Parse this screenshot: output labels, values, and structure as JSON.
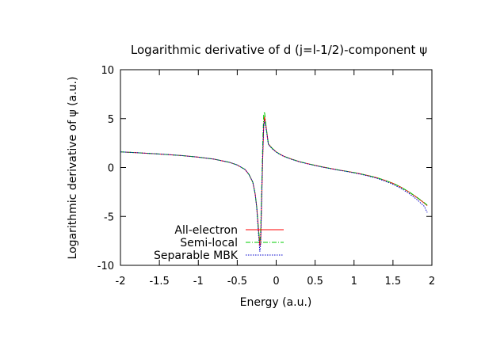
{
  "chart_data": {
    "type": "line",
    "title": "Logarithmic derivative of d (j=l-1/2)-component ψ",
    "xlabel": "Energy (a.u.)",
    "ylabel": "Logarithmic derivative of ψ (a.u.)",
    "xlim": [
      -2,
      2
    ],
    "ylim": [
      -10,
      10
    ],
    "xticks": [
      "-2",
      "-1.5",
      "-1",
      "-0.5",
      "0",
      "0.5",
      "1",
      "1.5",
      "2"
    ],
    "yticks": [
      "-10",
      "-5",
      "0",
      "5",
      "10"
    ],
    "grid": false,
    "legend_position": "bottom-left",
    "series": [
      {
        "name": "All-electron",
        "color": "#ff0000",
        "dash": "solid",
        "x": [
          -2.0,
          -1.8,
          -1.6,
          -1.4,
          -1.2,
          -1.0,
          -0.8,
          -0.6,
          -0.5,
          -0.4,
          -0.35,
          -0.3,
          -0.27,
          -0.25,
          -0.23,
          -0.21,
          -0.2,
          -0.19,
          -0.18,
          -0.17,
          -0.16,
          -0.15,
          -0.13,
          -0.11,
          -0.1,
          -0.05,
          0.0,
          0.05,
          0.1,
          0.2,
          0.3,
          0.4,
          0.5,
          0.6,
          0.7,
          0.8,
          0.9,
          1.0,
          1.1,
          1.2,
          1.3,
          1.4,
          1.5,
          1.6,
          1.7,
          1.8,
          1.9,
          1.94
        ],
        "values": [
          1.6,
          1.52,
          1.43,
          1.33,
          1.21,
          1.06,
          0.86,
          0.53,
          0.26,
          -0.2,
          -0.7,
          -1.5,
          -2.7,
          -4.0,
          -6.0,
          -8.0,
          -7.8,
          -4.5,
          -1.2,
          1.8,
          4.2,
          5.2,
          4.2,
          3.0,
          2.4,
          1.95,
          1.6,
          1.35,
          1.15,
          0.85,
          0.6,
          0.4,
          0.22,
          0.05,
          -0.1,
          -0.25,
          -0.38,
          -0.52,
          -0.68,
          -0.86,
          -1.06,
          -1.32,
          -1.62,
          -2.0,
          -2.48,
          -3.02,
          -3.62,
          -3.9
        ]
      },
      {
        "name": "Semi-local",
        "color": "#00cc00",
        "dash": "dashdot",
        "x": [
          -2.0,
          -1.8,
          -1.6,
          -1.4,
          -1.2,
          -1.0,
          -0.8,
          -0.6,
          -0.5,
          -0.4,
          -0.35,
          -0.3,
          -0.27,
          -0.25,
          -0.23,
          -0.21,
          -0.2,
          -0.19,
          -0.18,
          -0.17,
          -0.16,
          -0.15,
          -0.13,
          -0.11,
          -0.1,
          -0.05,
          0.0,
          0.05,
          0.1,
          0.2,
          0.3,
          0.4,
          0.5,
          0.6,
          0.7,
          0.8,
          0.9,
          1.0,
          1.1,
          1.2,
          1.3,
          1.4,
          1.5,
          1.6,
          1.7,
          1.8,
          1.9,
          1.94
        ],
        "values": [
          1.6,
          1.52,
          1.43,
          1.33,
          1.21,
          1.06,
          0.86,
          0.53,
          0.26,
          -0.2,
          -0.7,
          -1.5,
          -2.7,
          -4.0,
          -6.2,
          -7.5,
          -6.6,
          -3.5,
          0.0,
          3.2,
          5.4,
          5.7,
          4.2,
          3.0,
          2.4,
          1.95,
          1.6,
          1.35,
          1.15,
          0.85,
          0.6,
          0.4,
          0.22,
          0.05,
          -0.1,
          -0.25,
          -0.38,
          -0.52,
          -0.68,
          -0.86,
          -1.06,
          -1.32,
          -1.62,
          -2.0,
          -2.46,
          -3.0,
          -3.58,
          -3.85
        ]
      },
      {
        "name": "Separable MBK",
        "color": "#0000cc",
        "dash": "dotted",
        "x": [
          -2.0,
          -1.8,
          -1.6,
          -1.4,
          -1.2,
          -1.0,
          -0.8,
          -0.6,
          -0.5,
          -0.4,
          -0.35,
          -0.3,
          -0.27,
          -0.25,
          -0.23,
          -0.21,
          -0.2,
          -0.19,
          -0.18,
          -0.17,
          -0.16,
          -0.15,
          -0.13,
          -0.11,
          -0.1,
          -0.05,
          0.0,
          0.05,
          0.1,
          0.2,
          0.3,
          0.4,
          0.5,
          0.6,
          0.7,
          0.8,
          0.9,
          1.0,
          1.1,
          1.2,
          1.3,
          1.4,
          1.5,
          1.6,
          1.7,
          1.8,
          1.9,
          1.94
        ],
        "values": [
          1.6,
          1.52,
          1.43,
          1.33,
          1.21,
          1.06,
          0.86,
          0.53,
          0.26,
          -0.2,
          -0.7,
          -1.5,
          -2.7,
          -4.1,
          -6.5,
          -8.6,
          -7.9,
          -4.4,
          -1.0,
          2.0,
          4.3,
          4.8,
          4.0,
          2.9,
          2.35,
          1.9,
          1.58,
          1.33,
          1.13,
          0.83,
          0.58,
          0.38,
          0.2,
          0.03,
          -0.12,
          -0.27,
          -0.4,
          -0.55,
          -0.71,
          -0.9,
          -1.12,
          -1.4,
          -1.72,
          -2.12,
          -2.62,
          -3.22,
          -3.95,
          -4.6
        ]
      }
    ]
  }
}
